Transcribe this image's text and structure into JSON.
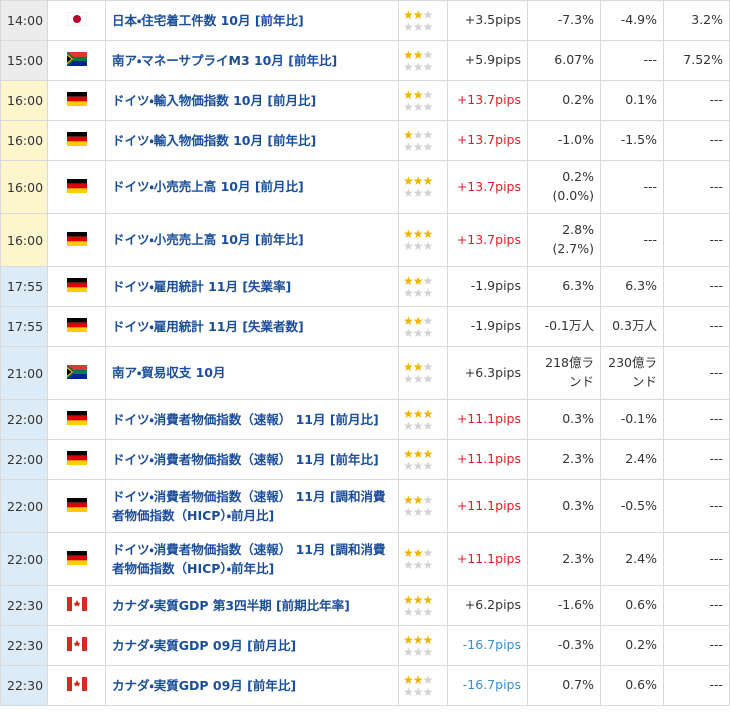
{
  "table": {
    "rows": [
      {
        "time": "14:00",
        "event": "日本・住宅着工件数 10月 [前年比]",
        "importance": 2,
        "pips": "+3.5pips",
        "previous": "-7.3%",
        "forecast": "-4.9%",
        "actual": "3.2%"
      },
      {
        "time": "15:00",
        "event": "南ア・マネーサプライM3 10月 [前年比]",
        "importance": 2,
        "pips": "+5.9pips",
        "previous": "6.07%",
        "forecast": "---",
        "actual": "7.52%"
      },
      {
        "time": "16:00",
        "event": "ドイツ・輸入物価指数 10月 [前月比]",
        "importance": 2,
        "pips": "+13.7pips",
        "previous": "0.2%",
        "forecast": "0.1%",
        "actual": "---"
      },
      {
        "time": "16:00",
        "event": "ドイツ・輸入物価指数 10月 [前年比]",
        "importance": 1,
        "pips": "+13.7pips",
        "previous": "-1.0%",
        "forecast": "-1.5%",
        "actual": "---"
      },
      {
        "time": "16:00",
        "event": "ドイツ・小売売上高 10月 [前月比]",
        "importance": 3,
        "pips": "+13.7pips",
        "previous": "0.2%\n(0.0%)",
        "forecast": "---",
        "actual": "---"
      },
      {
        "time": "16:00",
        "event": "ドイツ・小売売上高 10月 [前年比]",
        "importance": 3,
        "pips": "+13.7pips",
        "previous": "2.8%\n(2.7%)",
        "forecast": "---",
        "actual": "---"
      },
      {
        "time": "17:55",
        "event": "ドイツ・雇用統計 11月 [失業率]",
        "importance": 2,
        "pips": "-1.9pips",
        "previous": "6.3%",
        "forecast": "6.3%",
        "actual": "---"
      },
      {
        "time": "17:55",
        "event": "ドイツ・雇用統計 11月 [失業者数]",
        "importance": 2,
        "pips": "-1.9pips",
        "previous": "-0.1万人",
        "forecast": "0.3万人",
        "actual": "---"
      },
      {
        "time": "21:00",
        "event": "南ア・貿易収支 10月",
        "importance": 2,
        "pips": "+6.3pips",
        "previous": "218億ランド",
        "forecast": "230億ランド",
        "actual": "---"
      },
      {
        "time": "22:00",
        "event": "ドイツ・消費者物価指数（速報） 11月 [前月比]",
        "importance": 3,
        "pips": "+11.1pips",
        "previous": "0.3%",
        "forecast": "-0.1%",
        "actual": "---"
      },
      {
        "time": "22:00",
        "event": "ドイツ・消費者物価指数（速報） 11月 [前年比]",
        "importance": 3,
        "pips": "+11.1pips",
        "previous": "2.3%",
        "forecast": "2.4%",
        "actual": "---"
      },
      {
        "time": "22:00",
        "event": "ドイツ・消費者物価指数（速報） 11月 [調和消費者物価指数（HICP）・前月比]",
        "importance": 2,
        "pips": "+11.1pips",
        "previous": "0.3%",
        "forecast": "-0.5%",
        "actual": "---"
      },
      {
        "time": "22:00",
        "event": "ドイツ・消費者物価指数（速報） 11月 [調和消費者物価指数（HICP）・前年比]",
        "importance": 2,
        "pips": "+11.1pips",
        "previous": "2.3%",
        "forecast": "2.4%",
        "actual": "---"
      },
      {
        "time": "22:30",
        "event": "カナダ・実質GDP 第3四半期 [前期比年率]",
        "importance": 3,
        "pips": "+6.2pips",
        "previous": "-1.6%",
        "forecast": "0.6%",
        "actual": "---"
      },
      {
        "time": "22:30",
        "event": "カナダ・実質GDP 09月 [前月比]",
        "importance": 3,
        "pips": "-16.7pips",
        "previous": "-0.3%",
        "forecast": "0.2%",
        "actual": "---"
      },
      {
        "time": "22:30",
        "event": "カナダ・実質GDP 09月 [前年比]",
        "importance": 2,
        "pips": "-16.7pips",
        "previous": "0.7%",
        "forecast": "0.6%",
        "actual": "---"
      }
    ]
  }
}
